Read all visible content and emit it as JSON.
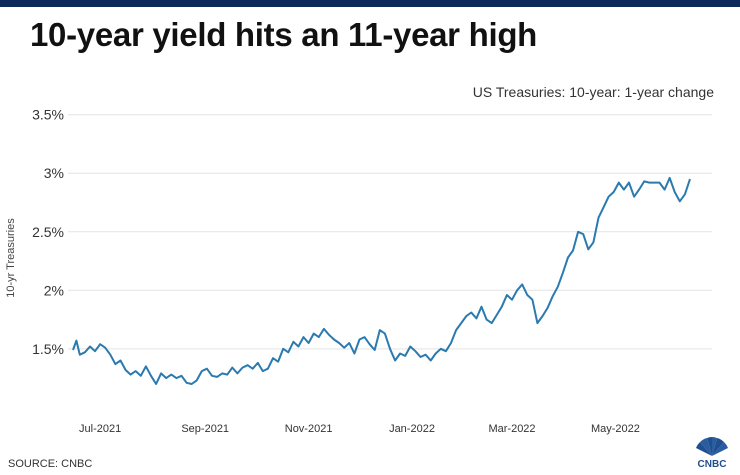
{
  "header": {
    "title": "10-year yield hits an 11-year high",
    "subtitle": "US Treasuries: 10-year: 1-year change"
  },
  "footer": {
    "source": "SOURCE: CNBC",
    "logo_text": "CNBC"
  },
  "colors": {
    "line": "#2a7ab0",
    "grid": "#e3e3e3",
    "topbar": "#0b2a5a",
    "logo_blue": "#1f4f8f"
  },
  "chart_data": {
    "type": "line",
    "title": "10-year yield hits an 11-year high",
    "subtitle": "US Treasuries: 10-year: 1-year change",
    "ylabel": "10-yr Treasuries",
    "xlabel": "",
    "x_ticks": [
      "Jul-2021",
      "Sep-2021",
      "Nov-2021",
      "Jan-2022",
      "Mar-2022",
      "May-2022"
    ],
    "y_ticks": [
      1.5,
      2,
      2.5,
      3,
      3.5
    ],
    "y_tick_labels": [
      "1.5%",
      "2%",
      "2.5%",
      "3%",
      "3.5%"
    ],
    "ylim": [
      1.08,
      3.6
    ],
    "xlim": [
      "2021-06-15",
      "2022-06-14"
    ],
    "grid": "horizontal",
    "series": [
      {
        "values": [
          [
            "2021-06-15",
            1.49
          ],
          [
            "2021-06-17",
            1.57
          ],
          [
            "2021-06-19",
            1.45
          ],
          [
            "2021-06-22",
            1.47
          ],
          [
            "2021-06-25",
            1.52
          ],
          [
            "2021-06-28",
            1.48
          ],
          [
            "2021-07-01",
            1.54
          ],
          [
            "2021-07-04",
            1.51
          ],
          [
            "2021-07-07",
            1.45
          ],
          [
            "2021-07-10",
            1.37
          ],
          [
            "2021-07-13",
            1.4
          ],
          [
            "2021-07-16",
            1.32
          ],
          [
            "2021-07-19",
            1.28
          ],
          [
            "2021-07-22",
            1.31
          ],
          [
            "2021-07-25",
            1.27
          ],
          [
            "2021-07-28",
            1.35
          ],
          [
            "2021-07-31",
            1.27
          ],
          [
            "2021-08-03",
            1.2
          ],
          [
            "2021-08-06",
            1.29
          ],
          [
            "2021-08-09",
            1.25
          ],
          [
            "2021-08-12",
            1.28
          ],
          [
            "2021-08-15",
            1.25
          ],
          [
            "2021-08-18",
            1.27
          ],
          [
            "2021-08-21",
            1.21
          ],
          [
            "2021-08-24",
            1.2
          ],
          [
            "2021-08-27",
            1.23
          ],
          [
            "2021-08-30",
            1.31
          ],
          [
            "2021-09-02",
            1.33
          ],
          [
            "2021-09-05",
            1.27
          ],
          [
            "2021-09-08",
            1.26
          ],
          [
            "2021-09-11",
            1.29
          ],
          [
            "2021-09-14",
            1.28
          ],
          [
            "2021-09-17",
            1.34
          ],
          [
            "2021-09-20",
            1.29
          ],
          [
            "2021-09-23",
            1.34
          ],
          [
            "2021-09-26",
            1.36
          ],
          [
            "2021-09-29",
            1.33
          ],
          [
            "2021-10-02",
            1.38
          ],
          [
            "2021-10-05",
            1.31
          ],
          [
            "2021-10-08",
            1.33
          ],
          [
            "2021-10-11",
            1.42
          ],
          [
            "2021-10-14",
            1.39
          ],
          [
            "2021-10-17",
            1.5
          ],
          [
            "2021-10-20",
            1.47
          ],
          [
            "2021-10-23",
            1.56
          ],
          [
            "2021-10-26",
            1.52
          ],
          [
            "2021-10-29",
            1.6
          ],
          [
            "2021-11-01",
            1.55
          ],
          [
            "2021-11-04",
            1.63
          ],
          [
            "2021-11-07",
            1.6
          ],
          [
            "2021-11-10",
            1.67
          ],
          [
            "2021-11-13",
            1.62
          ],
          [
            "2021-11-16",
            1.58
          ],
          [
            "2021-11-19",
            1.55
          ],
          [
            "2021-11-22",
            1.51
          ],
          [
            "2021-11-25",
            1.55
          ],
          [
            "2021-11-28",
            1.46
          ],
          [
            "2021-12-01",
            1.58
          ],
          [
            "2021-12-04",
            1.6
          ],
          [
            "2021-12-07",
            1.54
          ],
          [
            "2021-12-10",
            1.49
          ],
          [
            "2021-12-13",
            1.66
          ],
          [
            "2021-12-16",
            1.63
          ],
          [
            "2021-12-19",
            1.5
          ],
          [
            "2021-12-22",
            1.4
          ],
          [
            "2021-12-25",
            1.46
          ],
          [
            "2021-12-28",
            1.44
          ],
          [
            "2021-12-31",
            1.52
          ],
          [
            "2022-01-03",
            1.48
          ],
          [
            "2022-01-06",
            1.43
          ],
          [
            "2022-01-09",
            1.45
          ],
          [
            "2022-01-12",
            1.4
          ],
          [
            "2022-01-15",
            1.46
          ],
          [
            "2022-01-18",
            1.5
          ],
          [
            "2022-01-21",
            1.48
          ],
          [
            "2022-01-24",
            1.55
          ],
          [
            "2022-01-27",
            1.66
          ],
          [
            "2022-01-30",
            1.72
          ],
          [
            "2022-02-02",
            1.78
          ],
          [
            "2022-02-05",
            1.81
          ],
          [
            "2022-02-08",
            1.76
          ],
          [
            "2022-02-11",
            1.86
          ],
          [
            "2022-02-14",
            1.75
          ],
          [
            "2022-02-17",
            1.72
          ],
          [
            "2022-02-20",
            1.79
          ],
          [
            "2022-02-23",
            1.86
          ],
          [
            "2022-02-26",
            1.96
          ],
          [
            "2022-03-01",
            1.92
          ],
          [
            "2022-03-04",
            2.0
          ],
          [
            "2022-03-07",
            2.05
          ],
          [
            "2022-03-10",
            1.96
          ],
          [
            "2022-03-13",
            1.92
          ],
          [
            "2022-03-16",
            1.72
          ],
          [
            "2022-03-19",
            1.78
          ],
          [
            "2022-03-22",
            1.85
          ],
          [
            "2022-03-25",
            1.95
          ],
          [
            "2022-03-28",
            2.03
          ],
          [
            "2022-03-31",
            2.15
          ],
          [
            "2022-04-03",
            2.28
          ],
          [
            "2022-04-06",
            2.34
          ],
          [
            "2022-04-09",
            2.5
          ],
          [
            "2022-04-12",
            2.48
          ],
          [
            "2022-04-15",
            2.35
          ],
          [
            "2022-04-18",
            2.41
          ],
          [
            "2022-04-21",
            2.62
          ],
          [
            "2022-04-24",
            2.71
          ],
          [
            "2022-04-27",
            2.8
          ],
          [
            "2022-04-30",
            2.84
          ],
          [
            "2022-05-03",
            2.92
          ],
          [
            "2022-05-06",
            2.86
          ],
          [
            "2022-05-09",
            2.92
          ],
          [
            "2022-05-12",
            2.8
          ],
          [
            "2022-05-15",
            2.86
          ],
          [
            "2022-05-18",
            2.93
          ],
          [
            "2022-05-21",
            2.92
          ],
          [
            "2022-05-24",
            2.92
          ],
          [
            "2022-05-27",
            2.92
          ],
          [
            "2022-05-30",
            2.86
          ],
          [
            "2022-06-02",
            2.96
          ],
          [
            "2022-06-05",
            2.84
          ],
          [
            "2022-06-08",
            2.76
          ],
          [
            "2022-06-11",
            2.82
          ],
          [
            "2022-06-14",
            2.95
          ]
        ]
      }
    ]
  }
}
